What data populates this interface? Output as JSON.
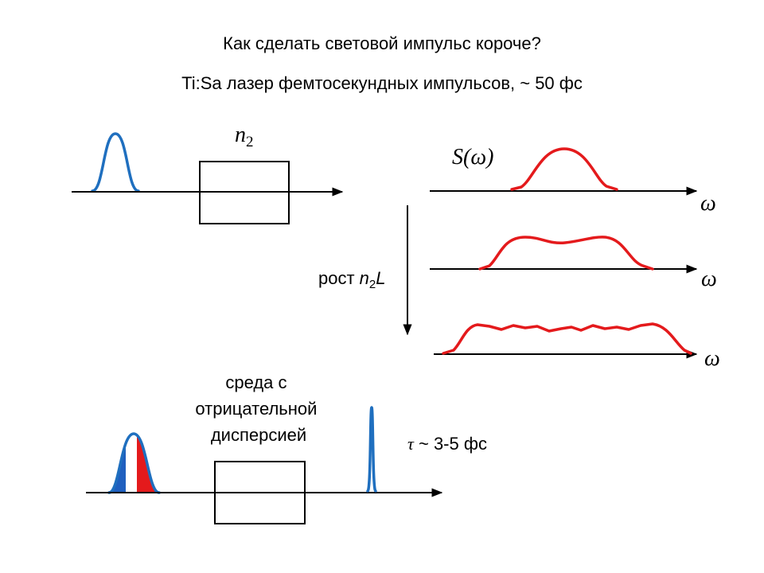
{
  "title": "Как сделать световой импульс короче?",
  "subtitle": "Ti:Sa  лазер фемтосекундных импульсов, ~ 50 фс",
  "medium_label": {
    "base": "n",
    "sub": "2"
  },
  "spectrum_label": "S(ω)",
  "axis_labels": [
    "ω",
    "ω",
    "ω"
  ],
  "growth_label": {
    "prefix": "рост ",
    "base": "n",
    "sub": "2",
    "suffix": "L"
  },
  "compressor_label": [
    "среда с",
    "отрицательной",
    "дисперсией"
  ],
  "duration_label": {
    "symbol": "τ",
    "text": " ~ 3-5 фс"
  }
}
